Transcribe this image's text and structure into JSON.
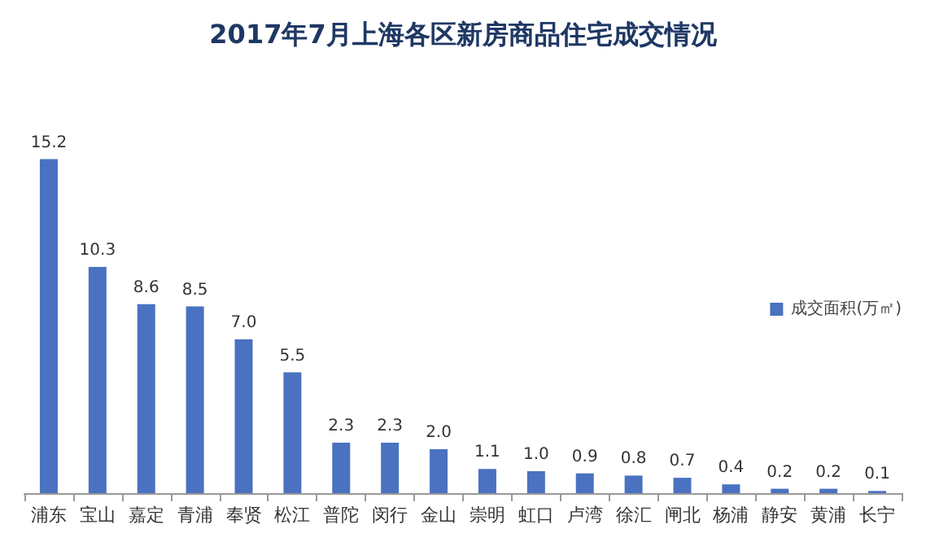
{
  "chart_data": {
    "type": "bar",
    "title": "2017年7月上海各区新房商品住宅成交情况",
    "categories": [
      "浦东",
      "宝山",
      "嘉定",
      "青浦",
      "奉贤",
      "松江",
      "普陀",
      "闵行",
      "金山",
      "崇明",
      "虹口",
      "卢湾",
      "徐汇",
      "闸北",
      "杨浦",
      "静安",
      "黄浦",
      "长宁"
    ],
    "series": [
      {
        "name": "成交面积(万㎡)",
        "color": "#4a72c0",
        "values": [
          15.2,
          10.3,
          8.6,
          8.5,
          7.0,
          5.5,
          2.3,
          2.3,
          2.0,
          1.1,
          1.0,
          0.9,
          0.8,
          0.7,
          0.4,
          0.2,
          0.2,
          0.1
        ],
        "value_labels": [
          "15.2",
          "10.3",
          "8.6",
          "8.5",
          "7.0",
          "5.5",
          "2.3",
          "2.3",
          "2.0",
          "1.1",
          "1.0",
          "0.9",
          "0.8",
          "0.7",
          "0.4",
          "0.2",
          "0.2",
          "0.1"
        ]
      }
    ],
    "legend": "right"
  }
}
